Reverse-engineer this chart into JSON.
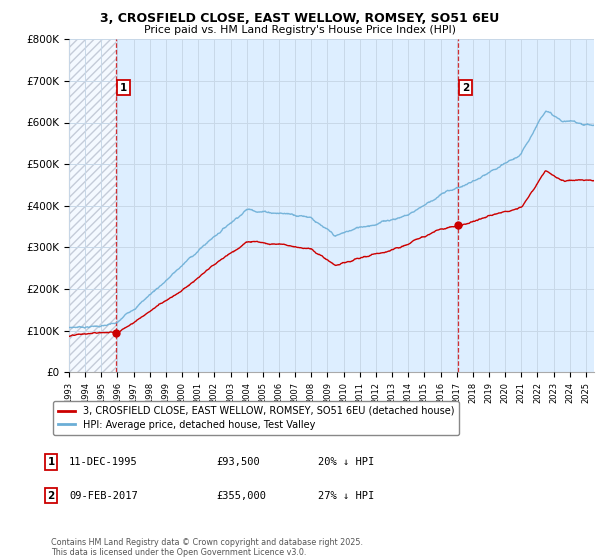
{
  "title_line1": "3, CROSFIELD CLOSE, EAST WELLOW, ROMSEY, SO51 6EU",
  "title_line2": "Price paid vs. HM Land Registry's House Price Index (HPI)",
  "ylim": [
    0,
    800000
  ],
  "ytick_values": [
    0,
    100000,
    200000,
    300000,
    400000,
    500000,
    600000,
    700000,
    800000
  ],
  "ytick_labels": [
    "£0",
    "£100K",
    "£200K",
    "£300K",
    "£400K",
    "£500K",
    "£600K",
    "£700K",
    "£800K"
  ],
  "hpi_color": "#6baed6",
  "price_color": "#cc0000",
  "grid_color": "#c8d8e8",
  "bg_plot_color": "#ddeeff",
  "hatch_color": "#b0b8c8",
  "legend_label_price": "3, CROSFIELD CLOSE, EAST WELLOW, ROMSEY, SO51 6EU (detached house)",
  "legend_label_hpi": "HPI: Average price, detached house, Test Valley",
  "annotation1_label": "1",
  "annotation1_date": "11-DEC-1995",
  "annotation1_price": "£93,500",
  "annotation1_hpi": "20% ↓ HPI",
  "annotation2_label": "2",
  "annotation2_date": "09-FEB-2017",
  "annotation2_price": "£355,000",
  "annotation2_hpi": "27% ↓ HPI",
  "footer_text": "Contains HM Land Registry data © Crown copyright and database right 2025.\nThis data is licensed under the Open Government Licence v3.0.",
  "sale1_x": 1995.94,
  "sale1_y": 93500,
  "sale2_x": 2017.11,
  "sale2_y": 355000,
  "vline1_x": 1995.94,
  "vline2_x": 2017.11,
  "xmin": 1993,
  "xmax": 2025.5,
  "hatch_end": 1995.94
}
